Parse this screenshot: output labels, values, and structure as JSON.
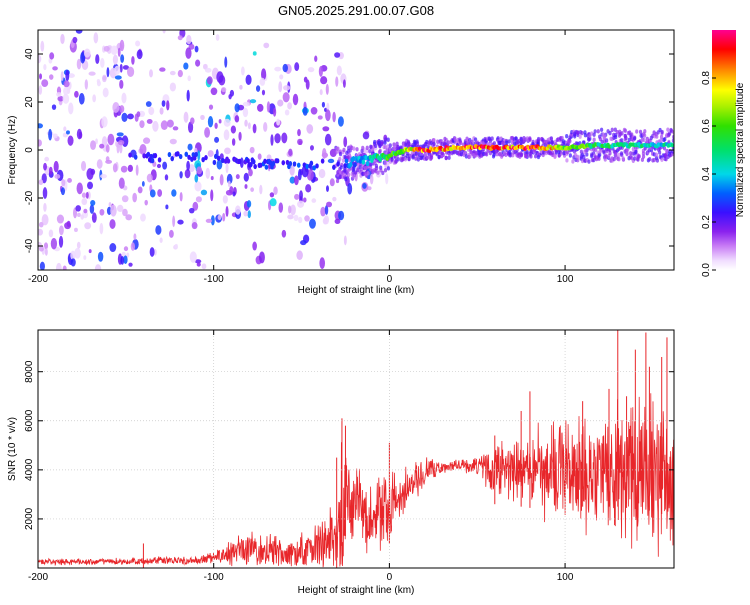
{
  "figure_title": "GN05.2025.291.00.07.G08",
  "colors": {
    "snr_line": "#e8262a",
    "axis": "#000000",
    "grid": "#c8c8c8"
  },
  "chart_data": [
    {
      "type": "heatmap",
      "title": "GN05.2025.291.00.07.G08",
      "xlabel": "Height of straight line (km)",
      "ylabel": "Frequency (Hz)",
      "xlim": [
        -200,
        162
      ],
      "ylim": [
        -50,
        50
      ],
      "x_ticks": [
        -200,
        -100,
        0,
        100
      ],
      "x_tick_labels": [
        "-200",
        "-100",
        "0",
        "100"
      ],
      "y_ticks": [
        -40,
        -20,
        0,
        20,
        40
      ],
      "y_tick_labels": [
        "-40",
        "-20",
        "0",
        "20",
        "40"
      ],
      "ridge": {
        "x": [
          -200,
          -150,
          -110,
          -90,
          -60,
          -30,
          -20,
          -10,
          0,
          10,
          20,
          40,
          60,
          80,
          100,
          120,
          140,
          162
        ],
        "freq": [
          -3,
          -3,
          -3,
          -5,
          -6,
          -6,
          -5,
          -4,
          -2,
          0,
          0,
          1,
          1,
          1,
          1,
          2,
          2,
          2
        ],
        "peak_amplitude": [
          0.2,
          0.25,
          0.3,
          0.25,
          0.3,
          0.3,
          0.35,
          0.45,
          0.6,
          0.75,
          0.95,
          0.9,
          0.9,
          0.95,
          0.7,
          0.55,
          0.5,
          0.45
        ]
      },
      "colorbar": {
        "label": "Normalized spectral amplitude",
        "range": [
          0,
          1
        ],
        "ticks": [
          0.0,
          0.2,
          0.4,
          0.6,
          0.8
        ],
        "tick_labels": [
          "0.0",
          "0.2",
          "0.4",
          "0.6",
          "0.8"
        ]
      }
    },
    {
      "type": "line",
      "xlabel": "Height of straight line (km)",
      "ylabel": "SNR (10 * v/v)",
      "xlim": [
        -200,
        162
      ],
      "ylim": [
        0,
        9700
      ],
      "x_ticks": [
        -200,
        -100,
        0,
        100
      ],
      "x_tick_labels": [
        "-200",
        "-100",
        "0",
        "100"
      ],
      "y_ticks": [
        2000,
        4000,
        6000,
        8000
      ],
      "y_tick_labels": [
        "2000",
        "4000",
        "6000",
        "8000"
      ],
      "series": [
        {
          "name": "SNR",
          "x": [
            -200,
            -150,
            -140,
            -110,
            -100,
            -90,
            -80,
            -70,
            -60,
            -50,
            -40,
            -30,
            -28,
            -27,
            -25,
            -20,
            -15,
            -10,
            -5,
            0,
            5,
            10,
            15,
            20,
            25,
            30,
            35,
            40,
            50,
            55,
            60,
            65,
            70,
            75,
            78,
            80,
            90,
            95,
            100,
            110,
            120,
            128,
            130,
            140,
            145,
            150,
            155,
            160,
            162
          ],
          "mean": [
            250,
            270,
            280,
            300,
            400,
            600,
            800,
            700,
            600,
            700,
            900,
            1400,
            1800,
            2400,
            2800,
            2500,
            2200,
            2100,
            2200,
            2500,
            2800,
            3100,
            3500,
            3900,
            4050,
            4100,
            4150,
            4200,
            4200,
            4150,
            4100,
            4100,
            4050,
            4000,
            4000,
            3950,
            3900,
            3900,
            3950,
            4000,
            4000,
            4000,
            4000,
            3900,
            3900,
            3800,
            3700,
            3600,
            3600
          ],
          "spread": [
            150,
            150,
            180,
            200,
            300,
            600,
            900,
            800,
            700,
            900,
            1300,
            1800,
            2500,
            3500,
            3200,
            2200,
            2000,
            1800,
            1700,
            1500,
            1300,
            1100,
            900,
            700,
            500,
            300,
            250,
            300,
            700,
            1000,
            1300,
            1500,
            1600,
            1600,
            1700,
            2000,
            2300,
            2400,
            2500,
            2700,
            3000,
            3000,
            3300,
            3600,
            3500,
            3700,
            3800,
            3500,
            3400
          ],
          "spikes": [
            [
              -140,
              1000
            ],
            [
              -30,
              4500
            ],
            [
              -27,
              6100
            ],
            [
              -25,
              5800
            ],
            [
              0,
              5100
            ],
            [
              60,
              5400
            ],
            [
              75,
              6400
            ],
            [
              80,
              7200
            ],
            [
              110,
              6800
            ],
            [
              125,
              7300
            ],
            [
              130,
              9700
            ],
            [
              135,
              7000
            ],
            [
              140,
              8900
            ],
            [
              146,
              9600
            ],
            [
              148,
              8200
            ],
            [
              155,
              8600
            ],
            [
              158,
              9400
            ],
            [
              162,
              5700
            ]
          ]
        }
      ]
    }
  ]
}
